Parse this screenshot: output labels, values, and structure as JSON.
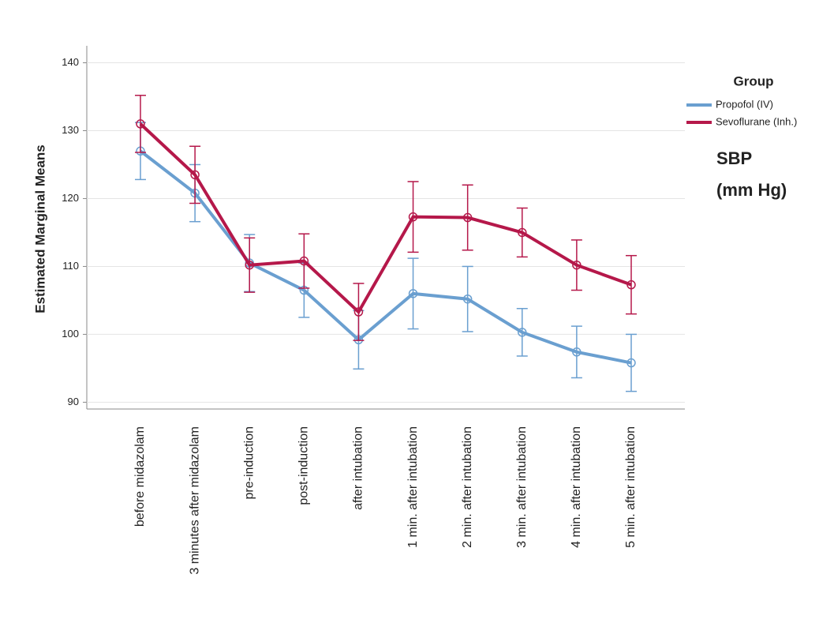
{
  "chart_data": {
    "type": "line",
    "y_label": "Estimated Marginal Means",
    "annotation": [
      "SBP",
      "(mm Hg)"
    ],
    "legend_title": "Group",
    "legend": "right",
    "grid": true,
    "categories": [
      "before midazolam",
      "3 minutes after midazolam",
      "pre-induction",
      "post-induction",
      "after intubation",
      "1 min. after intubation",
      "2 min. after intubation",
      "3 min. after intubation",
      "4 min. after intubation",
      "5 min. after intubation"
    ],
    "series": [
      {
        "name": "Propofol (IV)",
        "color": "#6a9fd0",
        "values": [
          127,
          120.8,
          110.5,
          106.5,
          99.2,
          106,
          105.2,
          100.3,
          97.4,
          95.8
        ],
        "errors": [
          4.2,
          4.2,
          4.2,
          4,
          4.3,
          5.2,
          4.8,
          3.5,
          3.8,
          4.2
        ]
      },
      {
        "name": "Sevoflurane (Inh.)",
        "color": "#b5184a",
        "values": [
          131,
          123.5,
          110.2,
          110.8,
          103.3,
          117.3,
          117.2,
          115,
          110.2,
          107.3
        ],
        "errors": [
          4.2,
          4.2,
          4,
          4,
          4.2,
          5.2,
          4.8,
          3.6,
          3.7,
          4.3
        ]
      }
    ],
    "ylim": [
      89,
      142.5
    ],
    "yticks": [
      90,
      100,
      110,
      120,
      130,
      140
    ]
  }
}
